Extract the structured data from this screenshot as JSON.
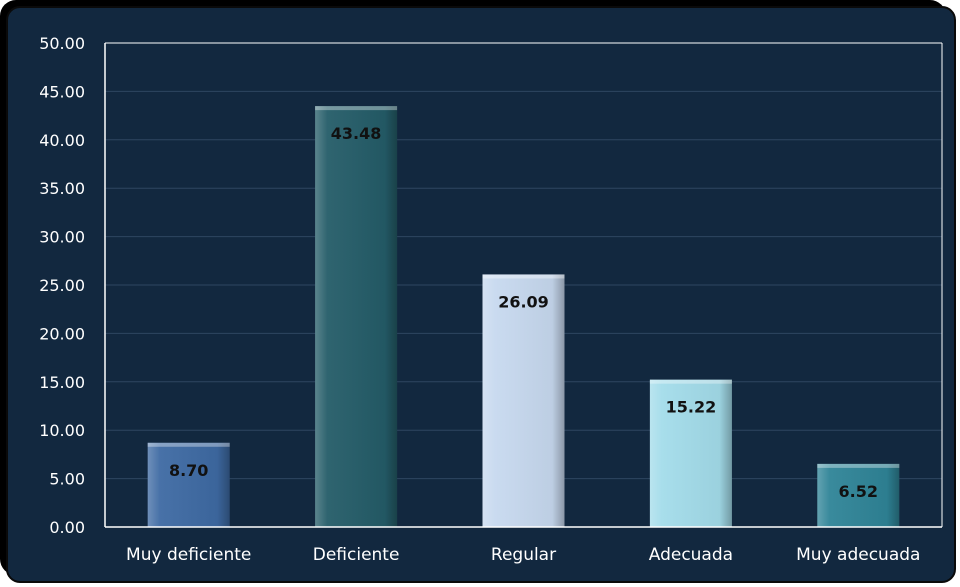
{
  "chart_data": {
    "type": "bar",
    "title": "",
    "xlabel": "",
    "ylabel": "",
    "categories": [
      "Muy deficiente",
      "Deficiente",
      "Regular",
      "Adecuada",
      "Muy adecuada"
    ],
    "values": [
      8.7,
      43.48,
      26.09,
      15.22,
      6.52
    ],
    "data_labels": [
      "8.70",
      "43.48",
      "26.09",
      "15.22",
      "6.52"
    ],
    "bar_colors": [
      "#3e6aa3",
      "#245c68",
      "#c7d9ef",
      "#a3dcea",
      "#2f8497"
    ],
    "ylim": [
      0,
      50
    ],
    "yticks": [
      "0.00",
      "5.00",
      "10.00",
      "15.00",
      "20.00",
      "25.00",
      "30.00",
      "35.00",
      "40.00",
      "45.00",
      "50.00"
    ],
    "grid": true,
    "legend": "none",
    "colors": {
      "background": "#12283f",
      "grid": "#2e4660",
      "axis": "#ffffff"
    }
  }
}
